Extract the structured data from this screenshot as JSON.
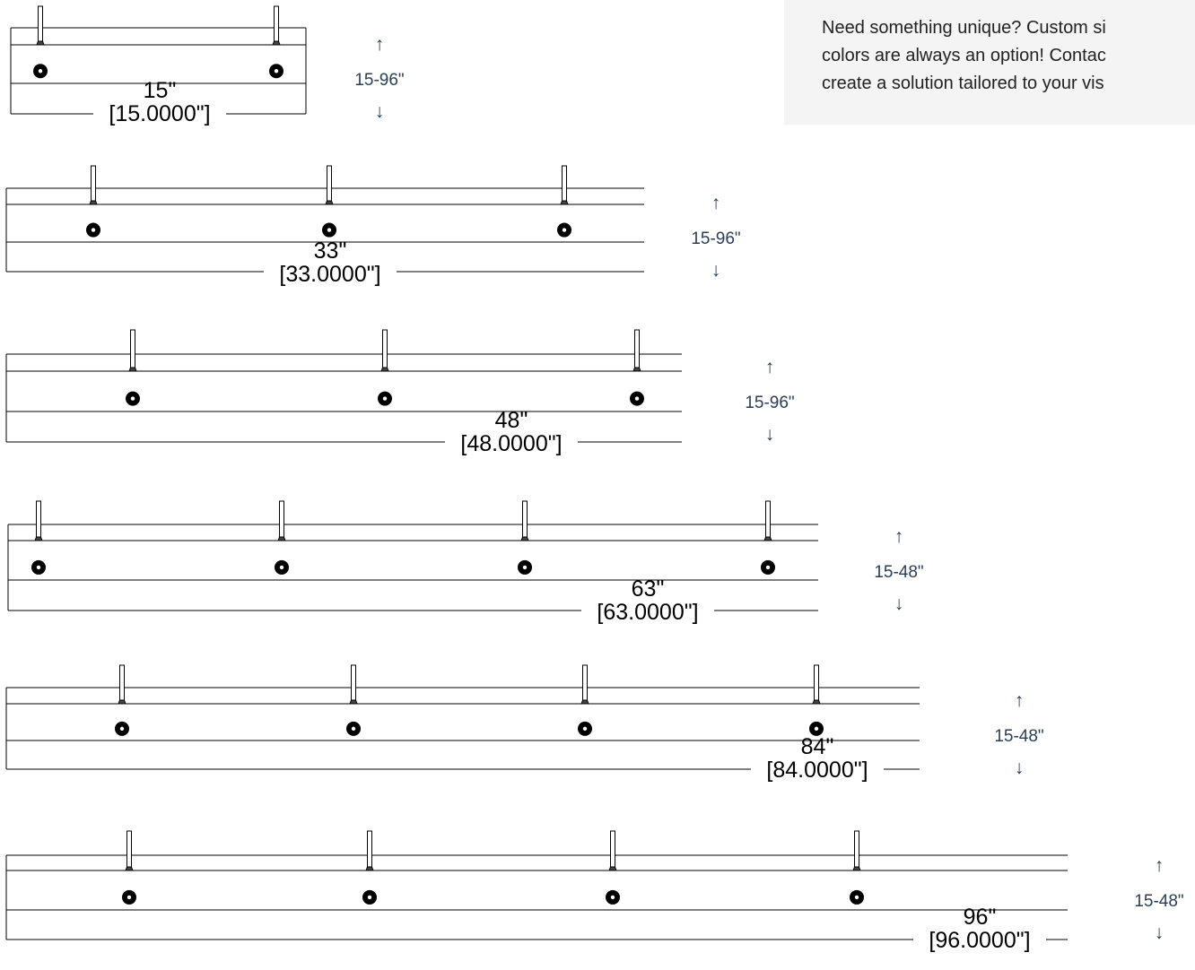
{
  "note": {
    "lines": [
      "Need something unique? Custom si",
      "colors are always an option! Contac",
      "create a solution tailored to your vis"
    ]
  },
  "colors": {
    "line": "#000000",
    "range_text": "#2b3e57",
    "note_bg": "#f4f4f4"
  },
  "shelves": [
    {
      "length_label": "15\"",
      "length_detail": "[15.0000\"]",
      "range_label": "15-96\"",
      "arrow_up": "↑",
      "arrow_down": "↓",
      "mount_count": 2
    },
    {
      "length_label": "33\"",
      "length_detail": "[33.0000\"]",
      "range_label": "15-96\"",
      "arrow_up": "↑",
      "arrow_down": "↓",
      "mount_count": 3
    },
    {
      "length_label": "48\"",
      "length_detail": "[48.0000\"]",
      "range_label": "15-96\"",
      "arrow_up": "↑",
      "arrow_down": "↓",
      "mount_count": 3
    },
    {
      "length_label": "63\"",
      "length_detail": "[63.0000\"]",
      "range_label": "15-48\"",
      "arrow_up": "↑",
      "arrow_down": "↓",
      "mount_count": 4
    },
    {
      "length_label": "84\"",
      "length_detail": "[84.0000\"]",
      "range_label": "15-48\"",
      "arrow_up": "↑",
      "arrow_down": "↓",
      "mount_count": 4
    },
    {
      "length_label": "96\"",
      "length_detail": "[96.0000\"]",
      "range_label": "15-48\"",
      "arrow_up": "↑",
      "arrow_down": "↓",
      "mount_count": 4
    }
  ]
}
